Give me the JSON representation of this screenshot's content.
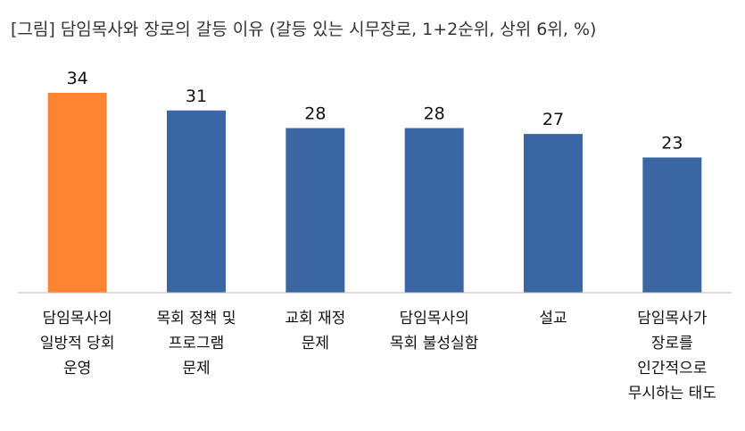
{
  "title": "[그림] 담임목사와 장로의 갈등 이유 (갈등 있는 시무장로, 1+2순위, 상위 6위, %)",
  "colors": {
    "highlight": "#ff8432",
    "default": "#3a66a4",
    "axis": "#bbbbbb"
  },
  "chart_data": {
    "type": "bar",
    "categories": [
      [
        "담임목사의",
        "일방적 당회",
        "운영"
      ],
      [
        "목회 정책 및",
        "프로그램",
        "문제"
      ],
      [
        "교회 재정",
        "문제"
      ],
      [
        "담임목사의",
        "목회 불성실함"
      ],
      [
        "설교"
      ],
      [
        "담임목사가",
        "장로를",
        "인간적으로",
        "무시하는 태도"
      ]
    ],
    "values": [
      34,
      31,
      28,
      28,
      27,
      23
    ],
    "highlight_index": 0,
    "ylim": [
      0,
      34
    ],
    "grid": false,
    "legend": "none"
  }
}
